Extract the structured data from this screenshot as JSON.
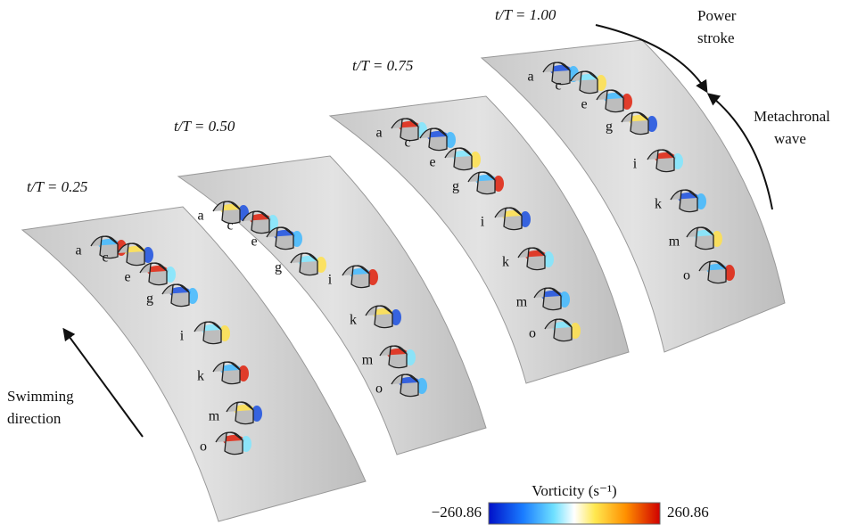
{
  "panels": [
    {
      "time_label": "t/T = 0.25",
      "cilia": [
        "a",
        "c",
        "e",
        "g",
        "i",
        "k",
        "m",
        "o"
      ]
    },
    {
      "time_label": "t/T = 0.50",
      "cilia": [
        "a",
        "c",
        "e",
        "g",
        "i",
        "k",
        "m",
        "o"
      ]
    },
    {
      "time_label": "t/T = 0.75",
      "cilia": [
        "a",
        "c",
        "e",
        "g",
        "i",
        "k",
        "m",
        "o"
      ]
    },
    {
      "time_label": "t/T = 1.00",
      "cilia": [
        "a",
        "c",
        "e",
        "g",
        "i",
        "k",
        "m",
        "o"
      ]
    }
  ],
  "annotations": {
    "swimming_direction": [
      "Swimming",
      "direction"
    ],
    "power_stroke": [
      "Power",
      "stroke"
    ],
    "metachronal_wave": [
      "Metachronal",
      "wave"
    ]
  },
  "colorbar": {
    "title": "Vorticity (s⁻¹)",
    "min_label": "−260.86",
    "max_label": "260.86"
  }
}
